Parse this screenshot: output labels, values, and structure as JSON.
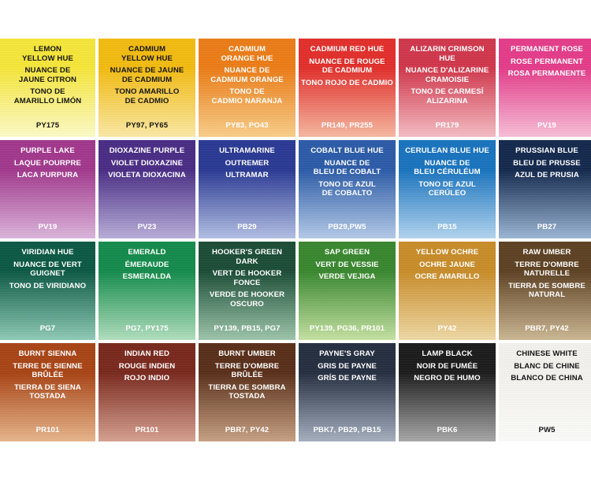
{
  "swatches": [
    {
      "name": "LEMON\nYELLOW HUE",
      "fr": "NUANCE DE\nJAUNE CITRON",
      "es": "TONO DE\nAMARILLO LIMÓN",
      "pigment": "PY175",
      "top": "#f6e63b",
      "bottom": "#fdfbc8",
      "text": "dark"
    },
    {
      "name": "CADMIUM\nYELLOW HUE",
      "fr": "NUANCE DE JAUNE\nDE CADMIUM",
      "es": "TONO AMARILLO\nDE CADMIO",
      "pigment": "PY97, PY65",
      "top": "#f3bc12",
      "bottom": "#fbe9a6",
      "text": "dark"
    },
    {
      "name": "CADMIUM\nORANGE HUE",
      "fr": "NUANCE DE\nCADMIUM ORANGE",
      "es": "TONO DE\nCADMIO NARANJA",
      "pigment": "PY83, PO43",
      "top": "#ec7d18",
      "bottom": "#f9cf8a",
      "text": "light"
    },
    {
      "name": "CADMIUM RED HUE",
      "fr": "NUANCE DE ROUGE\nDE CADMIUM",
      "es": "TONO ROJO DE CADMIO",
      "pigment": "PR149, PR255",
      "top": "#e2302c",
      "bottom": "#f7b9a2",
      "text": "light"
    },
    {
      "name": "ALIZARIN CRIMSON HUE",
      "fr": "NUANCE D'ALIZARINE\nCRAMOISIE",
      "es": "TONO DE CARMESÍ\nALIZARINA",
      "pigment": "PR179",
      "top": "#d1384c",
      "bottom": "#f5bdc4",
      "text": "light"
    },
    {
      "name": "PERMANENT ROSE",
      "fr": "ROSE PERMANENT",
      "es": "ROSA PERMANENTE",
      "pigment": "PV19",
      "top": "#e43d8a",
      "bottom": "#f8c0d8",
      "text": "light"
    },
    {
      "name": "PURPLE LAKE",
      "fr": "LAQUE POURPRE",
      "es": "LACA PURPURA",
      "pigment": "PV19",
      "top": "#a2398d",
      "bottom": "#dcb6dc",
      "text": "light"
    },
    {
      "name": "DIOXAZINE PURPLE",
      "fr": "VIOLET DIOXAZINE",
      "es": "VIOLETA DIOXACINA",
      "pigment": "PV23",
      "top": "#4a2e86",
      "bottom": "#b9afd9",
      "text": "light"
    },
    {
      "name": "ULTRAMARINE",
      "fr": "OUTREMER",
      "es": "ULTRAMAR",
      "pigment": "PB29",
      "top": "#2b3a94",
      "bottom": "#b4c0e4",
      "text": "light"
    },
    {
      "name": "COBALT BLUE HUE",
      "fr": "NUANCE DE\nBLEU DE COBALT",
      "es": "TONO DE AZUL\nDE COBALTO",
      "pigment": "PB29,PW5",
      "top": "#2d5ca8",
      "bottom": "#b5cbe8",
      "text": "light"
    },
    {
      "name": "CERULEAN BLUE HUE",
      "fr": "NUANCE DE\nBLEU CÉRULÉUM",
      "es": "TONO DE AZUL\nCERÚLEO",
      "pigment": "PB15",
      "top": "#1a74bf",
      "bottom": "#b3d5ef",
      "text": "light"
    },
    {
      "name": "PRUSSIAN BLUE",
      "fr": "BLEU DE PRUSSE",
      "es": "AZUL DE PRUSIA",
      "pigment": "PB27",
      "top": "#142a4e",
      "bottom": "#9db7d6",
      "text": "light"
    },
    {
      "name": "VIRIDIAN HUE",
      "fr": "NUANCE DE VERT\nGUIGNET",
      "es": "TONO DE VIRIDIANO",
      "pigment": "PG7",
      "top": "#0d5a45",
      "bottom": "#8fcbb6",
      "text": "light"
    },
    {
      "name": "EMERALD",
      "fr": "ÉMERAUDE",
      "es": "ESMERALDA",
      "pigment": "PG7, PY175",
      "top": "#158c4c",
      "bottom": "#b2dfbf",
      "text": "light"
    },
    {
      "name": "HOOKER'S GREEN\nDARK",
      "fr": "VERT DE HOOKER\nFONCE",
      "es": "VERDE DE HOOKER\nOSCURO",
      "pigment": "PY139, PB15, PG7",
      "top": "#1d4e37",
      "bottom": "#9ec6ac",
      "text": "light"
    },
    {
      "name": "SAP GREEN",
      "fr": "VERT DE VESSIE",
      "es": "VERDE VEJIGA",
      "pigment": "PY139, PG36, PR101",
      "top": "#3a8830",
      "bottom": "#c5e2a2",
      "text": "light"
    },
    {
      "name": "YELLOW OCHRE",
      "fr": "OCHRE JAUNE",
      "es": "OCRE AMARILLO",
      "pigment": "PY42",
      "top": "#c98d2a",
      "bottom": "#efd9a6",
      "text": "light"
    },
    {
      "name": "RAW UMBER",
      "fr": "TERRE D'OMBRE\nNATURELLE",
      "es": "TIERRA DE SOMBRE\nNATURAL",
      "pigment": "PBr7, PY42",
      "top": "#5e4224",
      "bottom": "#cdb894",
      "text": "light"
    },
    {
      "name": "BURNT SIENNA",
      "fr": "TERRE DE SIENNE\nBRÛLÉE",
      "es": "TIERRA DE SIENA\nTOSTADA",
      "pigment": "PR101",
      "top": "#a84517",
      "bottom": "#e8b68c",
      "text": "light"
    },
    {
      "name": "INDIAN RED",
      "fr": "ROUGE INDIEN",
      "es": "ROJO INDIO",
      "pigment": "PR101",
      "top": "#7a2a1f",
      "bottom": "#d7a291",
      "text": "light"
    },
    {
      "name": "BURNT UMBER",
      "fr": "TERRE D'OMBRE\nBRÛLÉE",
      "es": "TIERRA DE SOMBRA\nTOSTADA",
      "pigment": "PBr7, PY42",
      "top": "#5a301b",
      "bottom": "#c8a284",
      "text": "light"
    },
    {
      "name": "PAYNE'S GRAY",
      "fr": "GRIS DE PAYNE",
      "es": "GRÍS DE PAYNE",
      "pigment": "PBk7, PB29, PB15",
      "top": "#263041",
      "bottom": "#a6b0c0",
      "text": "light"
    },
    {
      "name": "LAMP BLACK",
      "fr": "NOIR DE FUMÉE",
      "es": "NEGRO DE HUMO",
      "pigment": "PBk6",
      "top": "#1d1d1d",
      "bottom": "#a9a9a9",
      "text": "light"
    },
    {
      "name": "CHINESE WHITE",
      "fr": "BLANC DE CHINE",
      "es": "BLANCO DE CHINA",
      "pigment": "PW5",
      "top": "#f3f2ee",
      "bottom": "#fbfbf9",
      "text": "dark"
    }
  ]
}
